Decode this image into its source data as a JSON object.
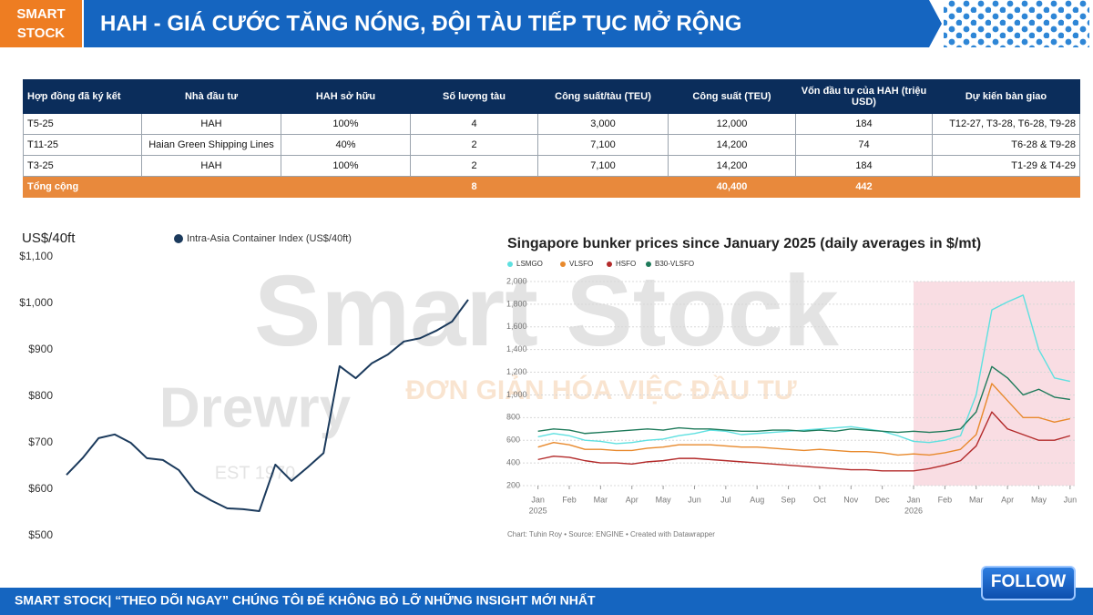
{
  "header": {
    "brand": [
      "SMART",
      "STOCK"
    ],
    "title": "HAH - GIÁ CƯỚC TĂNG NÓNG, ĐỘI TÀU TIẾP TỤC MỞ RỘNG"
  },
  "table": {
    "columns": [
      "Hợp đồng đã ký kết",
      "Nhà đầu tư",
      "HAH sở hữu",
      "Số lượng tàu",
      "Công suất/tàu (TEU)",
      "Công suất (TEU)",
      "Vốn đầu tư của HAH (triệu USD)",
      "Dự kiến bàn giao"
    ],
    "rows": [
      [
        "T5-25",
        "HAH",
        "100%",
        "4",
        "3,000",
        "12,000",
        "184",
        "T12-27, T3-28, T6-28, T9-28"
      ],
      [
        "T11-25",
        "Haian Green Shipping Lines",
        "40%",
        "2",
        "7,100",
        "14,200",
        "74",
        "T6-28 & T9-28"
      ],
      [
        "T3-25",
        "HAH",
        "100%",
        "2",
        "7,100",
        "14,200",
        "184",
        "T1-29 & T4-29"
      ]
    ],
    "total": {
      "label": "Tổng cộng",
      "ships": "8",
      "capacity": "40,400",
      "investment": "442"
    }
  },
  "watermark": {
    "brand": "Smart Stock",
    "slogan": "ĐƠN GIẢN HÓA VIỆC ĐẦU TƯ",
    "source_logo": "Drewry",
    "source_est": "EST 1970"
  },
  "chart_data": [
    {
      "type": "line",
      "y_axis_label": "US$/40ft",
      "series": [
        {
          "name": "Intra-Asia Container Index (US$/40ft)",
          "color": "#1b3a5c",
          "values": [
            631,
            667,
            710,
            718,
            700,
            667,
            663,
            641,
            596,
            576,
            559,
            557,
            553,
            653,
            618,
            647,
            678,
            865,
            839,
            871,
            890,
            918,
            925,
            941,
            961,
            1008
          ]
        }
      ],
      "ylim": [
        500,
        1100
      ],
      "yticks": [
        {
          "value": 500,
          "label": "$500"
        },
        {
          "value": 600,
          "label": "$600"
        },
        {
          "value": 700,
          "label": "$700"
        },
        {
          "value": 800,
          "label": "$800"
        },
        {
          "value": 900,
          "label": "$900"
        },
        {
          "value": 1000,
          "label": "$1,000"
        },
        {
          "value": 1100,
          "label": "$1,100"
        }
      ],
      "grid": false
    },
    {
      "type": "line",
      "title": "Singapore bunker prices since January 2025 (daily averages in $/mt)",
      "source": "Chart: Tuhin Roy • Source: ENGINE • Created with Datawrapper",
      "x": [
        0,
        0.5,
        1,
        1.5,
        2,
        2.5,
        3,
        3.5,
        4,
        4.5,
        5,
        5.5,
        6,
        6.5,
        7,
        7.5,
        8,
        8.5,
        9,
        9.5,
        10,
        10.5,
        11,
        11.5,
        12,
        12.5,
        13,
        13.5,
        14,
        14.5,
        15,
        15.5,
        16,
        16.5,
        17
      ],
      "series": [
        {
          "name": "LSMGO",
          "color": "#5ee0e0",
          "values": [
            630,
            660,
            640,
            600,
            590,
            570,
            580,
            600,
            610,
            640,
            660,
            690,
            680,
            650,
            660,
            670,
            680,
            690,
            700,
            710,
            720,
            700,
            680,
            640,
            590,
            580,
            600,
            640,
            1000,
            1750,
            1820,
            1880,
            1400,
            1150,
            1120
          ]
        },
        {
          "name": "VLSFO",
          "color": "#e8892c",
          "values": [
            540,
            580,
            560,
            520,
            520,
            510,
            510,
            530,
            540,
            560,
            560,
            560,
            550,
            540,
            540,
            530,
            520,
            510,
            520,
            510,
            500,
            500,
            490,
            470,
            480,
            470,
            490,
            520,
            650,
            1100,
            950,
            800,
            800,
            760,
            790
          ]
        },
        {
          "name": "HSFO",
          "color": "#b32a2a",
          "values": [
            430,
            460,
            450,
            420,
            400,
            400,
            390,
            410,
            420,
            440,
            440,
            430,
            420,
            410,
            400,
            390,
            380,
            370,
            360,
            350,
            340,
            340,
            330,
            330,
            330,
            350,
            380,
            420,
            550,
            850,
            700,
            650,
            600,
            600,
            640
          ]
        },
        {
          "name": "B30-VLSFO",
          "color": "#1e7a5a",
          "values": [
            680,
            700,
            690,
            660,
            670,
            680,
            690,
            700,
            690,
            710,
            700,
            700,
            690,
            680,
            680,
            690,
            690,
            680,
            690,
            680,
            700,
            690,
            680,
            670,
            680,
            670,
            680,
            700,
            850,
            1250,
            1150,
            1000,
            1050,
            980,
            960
          ]
        }
      ],
      "xlim": [
        -0.95,
        17.15
      ],
      "xticks": [
        {
          "value": 0,
          "label": "Jan"
        },
        {
          "value": 1,
          "label": "Feb"
        },
        {
          "value": 2,
          "label": "Mar"
        },
        {
          "value": 3,
          "label": "Apr"
        },
        {
          "value": 4,
          "label": "May"
        },
        {
          "value": 5,
          "label": "Jun"
        },
        {
          "value": 6,
          "label": "Jul"
        },
        {
          "value": 7,
          "label": "Aug"
        },
        {
          "value": 8,
          "label": "Sep"
        },
        {
          "value": 9,
          "label": "Oct"
        },
        {
          "value": 10,
          "label": "Nov"
        },
        {
          "value": 11,
          "label": "Dec"
        },
        {
          "value": 12,
          "label": "Jan"
        },
        {
          "value": 13,
          "label": "Feb"
        },
        {
          "value": 14,
          "label": "Mar"
        },
        {
          "value": 15,
          "label": "Apr"
        },
        {
          "value": 16,
          "label": "May"
        },
        {
          "value": 17,
          "label": "Jun"
        }
      ],
      "xtick_years": [
        {
          "value": 0,
          "label": "2025"
        },
        {
          "value": 12,
          "label": "2026"
        }
      ],
      "highlight_range": [
        12,
        17.15
      ],
      "ylim": [
        200,
        2000
      ],
      "yticks": [
        200,
        400,
        600,
        800,
        {
          "value": 1000,
          "label": "1,000"
        },
        {
          "value": 1200,
          "label": "1,200"
        },
        {
          "value": 1400,
          "label": "1,400"
        },
        {
          "value": 1600,
          "label": "1,600"
        },
        {
          "value": 1800,
          "label": "1,800"
        },
        {
          "value": 2000,
          "label": "2,000"
        }
      ],
      "grid": true
    }
  ],
  "footer": {
    "text": "SMART STOCK| “THEO DÕI NGAY” CHÚNG TÔI ĐỂ KHÔNG BỎ LỠ NHỮNG INSIGHT MỚI NHẤT",
    "button": "FOLLOW"
  }
}
